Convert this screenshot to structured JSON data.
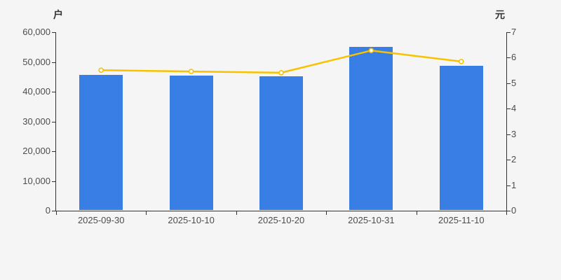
{
  "page": {
    "background_color": "#f5f5f5"
  },
  "chart_data": {
    "type": "bar",
    "subtype": "bar+line dual axis",
    "title": "",
    "categories": [
      "2025-09-30",
      "2025-10-10",
      "2025-10-20",
      "2025-10-31",
      "2025-11-10"
    ],
    "series": [
      {
        "name": "户",
        "type": "bar",
        "axis": "left",
        "color": "#387ee4",
        "values": [
          45700,
          45500,
          45200,
          55000,
          48800
        ]
      },
      {
        "name": "元",
        "type": "line",
        "axis": "right",
        "color": "#f8c200",
        "marker": "hollow-circle",
        "marker_fill": "#ffffff",
        "values": [
          5.51,
          5.46,
          5.41,
          6.28,
          5.85
        ]
      }
    ],
    "left_axis": {
      "title": "户",
      "min": 0,
      "max": 60000,
      "tick_step": 10000,
      "tick_labels": [
        "0",
        "10,000",
        "20,000",
        "30,000",
        "40,000",
        "50,000",
        "60,000"
      ]
    },
    "right_axis": {
      "title": "元",
      "min": 0,
      "max": 7,
      "tick_step": 1,
      "tick_labels": [
        "0",
        "1",
        "2",
        "3",
        "4",
        "5",
        "6",
        "7"
      ]
    },
    "legend": {
      "visible": false
    },
    "grid_lines": false,
    "axis_line_color": "#333333",
    "label_color": "#4d4d4d"
  }
}
